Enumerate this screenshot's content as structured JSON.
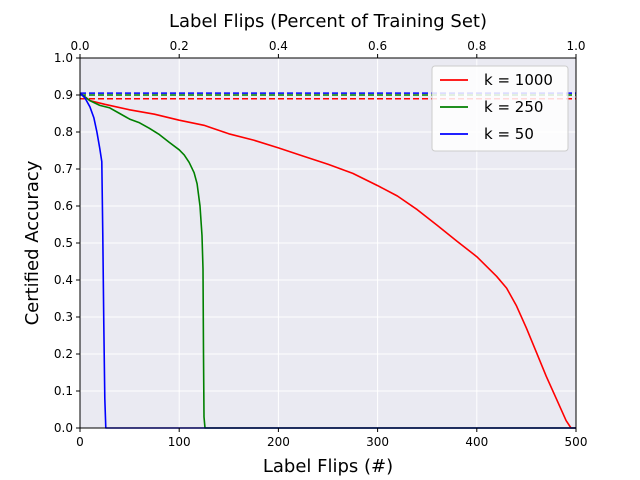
{
  "chart_data": {
    "type": "line",
    "title": "Label Flips (Percent of Training Set)",
    "xlabel": "Label Flips (#)",
    "ylabel": "Certified Accuracy",
    "xlim": [
      0,
      500
    ],
    "ylim": [
      0,
      1.0
    ],
    "x_ticks": [
      "0",
      "100",
      "200",
      "300",
      "400",
      "500"
    ],
    "y_ticks": [
      "0.0",
      "0.1",
      "0.2",
      "0.3",
      "0.4",
      "0.5",
      "0.6",
      "0.7",
      "0.8",
      "0.9",
      "1.0"
    ],
    "top_axis": {
      "range": [
        0,
        1.0
      ],
      "ticks": [
        "0.0",
        "0.2",
        "0.4",
        "0.6",
        "0.8",
        "1.0"
      ]
    },
    "grid": true,
    "legend_position": "top-right",
    "series": [
      {
        "name": "k = 1000",
        "color": "#ff0000",
        "baseline": 0.89,
        "points": [
          [
            0,
            0.905
          ],
          [
            10,
            0.885
          ],
          [
            25,
            0.875
          ],
          [
            50,
            0.86
          ],
          [
            75,
            0.848
          ],
          [
            100,
            0.832
          ],
          [
            125,
            0.818
          ],
          [
            150,
            0.795
          ],
          [
            175,
            0.778
          ],
          [
            200,
            0.757
          ],
          [
            225,
            0.735
          ],
          [
            250,
            0.713
          ],
          [
            275,
            0.688
          ],
          [
            300,
            0.655
          ],
          [
            320,
            0.627
          ],
          [
            340,
            0.59
          ],
          [
            360,
            0.548
          ],
          [
            380,
            0.505
          ],
          [
            400,
            0.463
          ],
          [
            420,
            0.41
          ],
          [
            430,
            0.378
          ],
          [
            440,
            0.33
          ],
          [
            450,
            0.27
          ],
          [
            460,
            0.205
          ],
          [
            470,
            0.14
          ],
          [
            480,
            0.08
          ],
          [
            490,
            0.02
          ],
          [
            495,
            0.0
          ],
          [
            500,
            0.0
          ]
        ]
      },
      {
        "name": "k = 250",
        "color": "#008000",
        "baseline": 0.9,
        "points": [
          [
            0,
            0.905
          ],
          [
            10,
            0.885
          ],
          [
            20,
            0.872
          ],
          [
            30,
            0.865
          ],
          [
            40,
            0.85
          ],
          [
            50,
            0.835
          ],
          [
            60,
            0.825
          ],
          [
            70,
            0.81
          ],
          [
            80,
            0.793
          ],
          [
            90,
            0.772
          ],
          [
            100,
            0.752
          ],
          [
            105,
            0.738
          ],
          [
            110,
            0.718
          ],
          [
            115,
            0.69
          ],
          [
            118,
            0.66
          ],
          [
            121,
            0.6
          ],
          [
            123,
            0.52
          ],
          [
            124,
            0.43
          ],
          [
            124.5,
            0.2
          ],
          [
            125,
            0.03
          ],
          [
            126,
            0.0
          ],
          [
            500,
            0.0
          ]
        ]
      },
      {
        "name": "k = 50",
        "color": "#0000ff",
        "baseline": 0.905,
        "points": [
          [
            0,
            0.905
          ],
          [
            5,
            0.892
          ],
          [
            10,
            0.868
          ],
          [
            14,
            0.838
          ],
          [
            17,
            0.8
          ],
          [
            20,
            0.755
          ],
          [
            22,
            0.72
          ],
          [
            23,
            0.52
          ],
          [
            24,
            0.28
          ],
          [
            25,
            0.08
          ],
          [
            26,
            0.0
          ],
          [
            500,
            0.0
          ]
        ]
      }
    ]
  }
}
